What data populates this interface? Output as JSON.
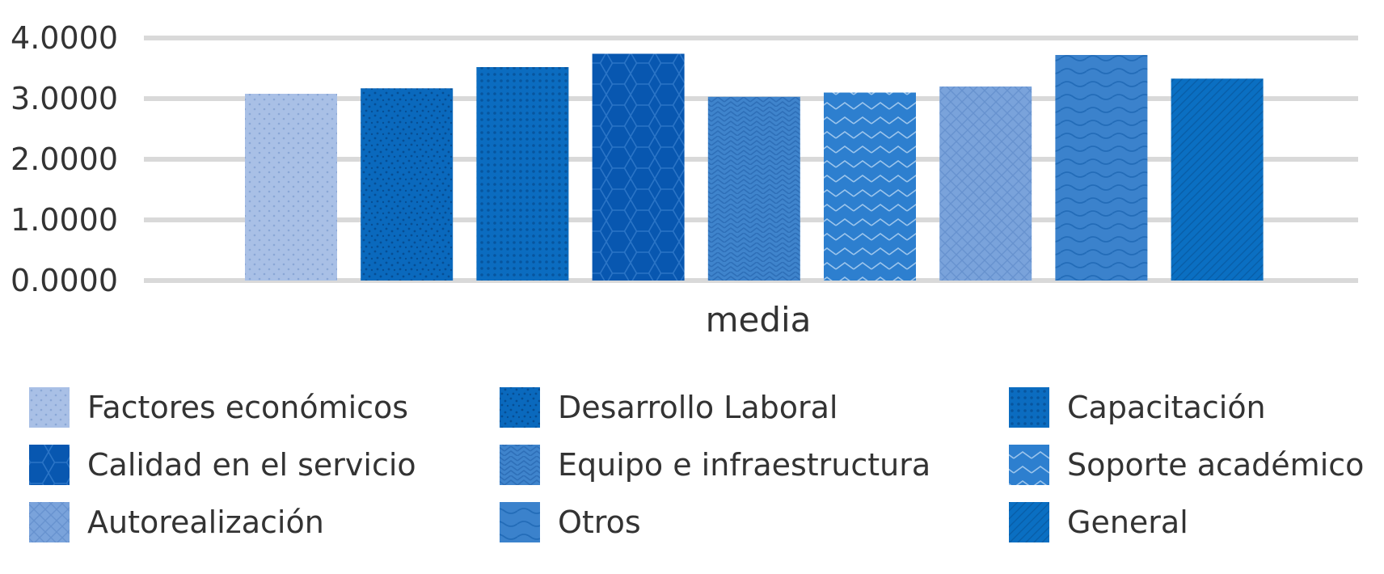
{
  "chart_data": {
    "type": "bar",
    "title": "",
    "xlabel": "media",
    "ylabel": "",
    "categories": [
      "media"
    ],
    "ylim": [
      0,
      4
    ],
    "yticks": [
      "0.0000",
      "1.0000",
      "2.0000",
      "3.0000",
      "4.0000"
    ],
    "grid": true,
    "legend_position": "bottom",
    "series": [
      {
        "name": "Factores económicos",
        "values": [
          3.08
        ],
        "color": "#a9c0e6",
        "pattern": "small-dots"
      },
      {
        "name": "Desarrollo Laboral",
        "values": [
          3.17
        ],
        "color": "#0a69bd",
        "pattern": "random-dots"
      },
      {
        "name": "Capacitación",
        "values": [
          3.52
        ],
        "color": "#0b6cc0",
        "pattern": "grid-dots"
      },
      {
        "name": "Calidad en el servicio",
        "values": [
          3.74
        ],
        "color": "#0857b0",
        "pattern": "hexagons"
      },
      {
        "name": "Equipo e infraestructura",
        "values": [
          3.03
        ],
        "color": "#3f84cc",
        "pattern": "zigzag"
      },
      {
        "name": "Soporte académico",
        "values": [
          3.1
        ],
        "color": "#2d7fcf",
        "pattern": "zigzag-light"
      },
      {
        "name": "Autorealización",
        "values": [
          3.2
        ],
        "color": "#7aa3db",
        "pattern": "crosshatch"
      },
      {
        "name": "Otros",
        "values": [
          3.72
        ],
        "color": "#3b82cc",
        "pattern": "waves"
      },
      {
        "name": "General",
        "values": [
          3.33
        ],
        "color": "#0a6fc2",
        "pattern": "diagonal"
      }
    ]
  }
}
